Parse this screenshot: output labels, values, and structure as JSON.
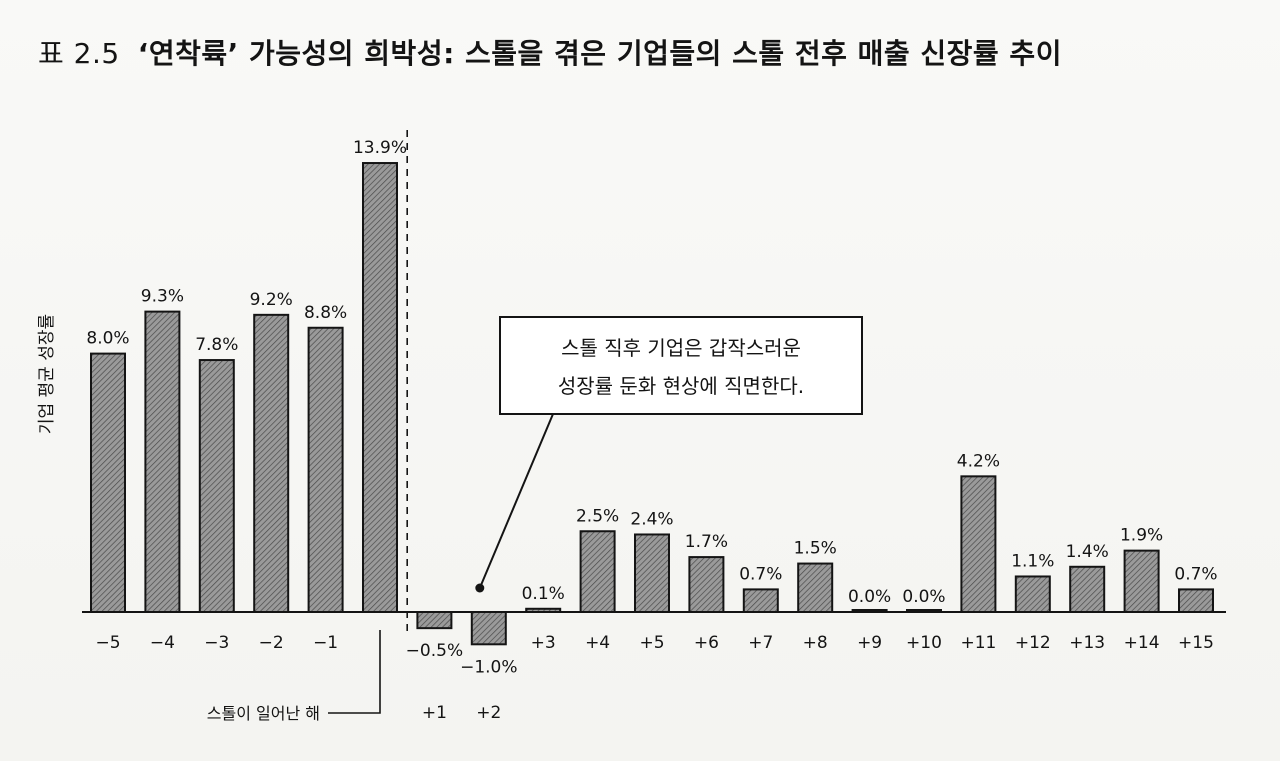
{
  "title": {
    "prefix": "표 2.5",
    "text": "‘연착륙’ 가능성의 희박성: 스톨을 겪은 기업들의 스톨 전후 매출 신장률 추이"
  },
  "chart_data": {
    "type": "bar",
    "title": "‘연착륙’ 가능성의 희박성: 스톨을 겪은 기업들의 스톨 전후 매출 신장률 추이",
    "ylabel": "기업 평균 성장률",
    "xlabel": "",
    "categories": [
      "−5",
      "−4",
      "−3",
      "−2",
      "−1",
      "",
      "+1",
      "+2",
      "+3",
      "+4",
      "+5",
      "+6",
      "+7",
      "+8",
      "+9",
      "+10",
      "+11",
      "+12",
      "+13",
      "+14",
      "+15"
    ],
    "values": [
      8.0,
      9.3,
      7.8,
      9.2,
      8.8,
      13.9,
      -0.5,
      -1.0,
      0.1,
      2.5,
      2.4,
      1.7,
      0.7,
      1.5,
      0.0,
      0.0,
      4.2,
      1.1,
      1.4,
      1.9,
      0.7
    ],
    "value_labels": [
      "8.0%",
      "9.3%",
      "7.8%",
      "9.2%",
      "8.8%",
      "13.9%",
      "−0.5%",
      "−1.0%",
      "0.1%",
      "2.5%",
      "2.4%",
      "1.7%",
      "0.7%",
      "1.5%",
      "0.0%",
      "0.0%",
      "4.2%",
      "1.1%",
      "1.4%",
      "1.9%",
      "0.7%"
    ],
    "ylim": [
      -1.5,
      14.5
    ],
    "grid": false,
    "legend": "none",
    "annotations": {
      "callout": [
        "스톨 직후 기업은 갑작스러운",
        "성장률 둔화 현상에 직면한다."
      ],
      "stall_year_label": "스톨이 일어난 해"
    }
  },
  "colors": {
    "bar_fill": "#8a8a8a",
    "bar_edge": "#141414",
    "background": "#f7f7f5"
  }
}
